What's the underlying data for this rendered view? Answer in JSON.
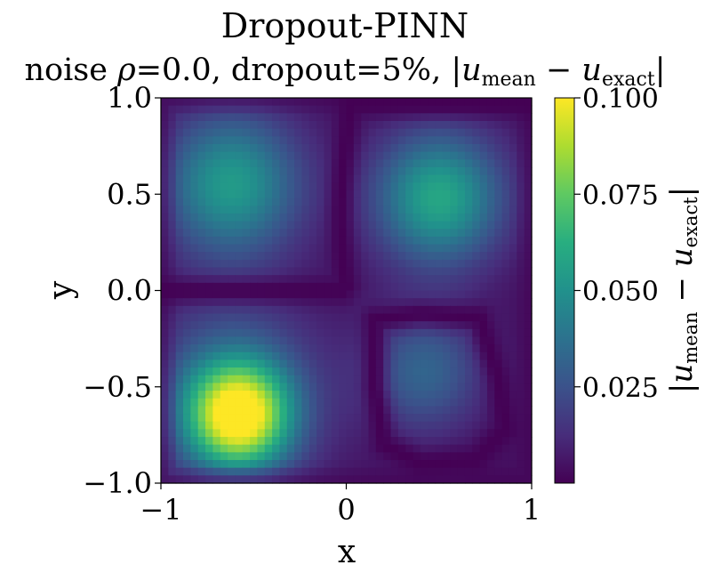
{
  "chart_data": {
    "type": "heatmap",
    "title": "Dropout-PINN",
    "subtitle": {
      "prefix": "noise ",
      "rho_symbol": "ρ",
      "rho_value": "=0.0, dropout=5%, ",
      "expr": {
        "bar_open": "|",
        "u1": "u",
        "sub1": "mean",
        "minus": " − ",
        "u2": "u",
        "sub2": "exact",
        "bar_close": "|"
      }
    },
    "xlabel": "x",
    "ylabel": "y",
    "xlim": [
      -1,
      1
    ],
    "ylim": [
      -1,
      1
    ],
    "xticks": [
      {
        "value": -1,
        "label": "−1"
      },
      {
        "value": 0,
        "label": "0"
      },
      {
        "value": 1,
        "label": "1"
      }
    ],
    "yticks": [
      {
        "value": 1.0,
        "label": "1.0"
      },
      {
        "value": 0.5,
        "label": "0.5"
      },
      {
        "value": 0.0,
        "label": "0.0"
      },
      {
        "value": -0.5,
        "label": "−0.5"
      },
      {
        "value": -1.0,
        "label": "−1.0"
      }
    ],
    "grid": false,
    "colormap": "viridis",
    "colorbar": {
      "vmin": 0.0,
      "vmax": 0.1,
      "ticks": [
        {
          "value": 0.1,
          "label": "0.100"
        },
        {
          "value": 0.075,
          "label": "0.075"
        },
        {
          "value": 0.05,
          "label": "0.050"
        },
        {
          "value": 0.025,
          "label": "0.025"
        }
      ],
      "label": {
        "bar_open": "|",
        "u1": "u",
        "sub1": "mean",
        "minus": " − ",
        "u2": "u",
        "sub2": "exact",
        "bar_close": "|"
      }
    },
    "grid_resolution": [
      50,
      50
    ],
    "field_peaks": [
      {
        "x": -0.58,
        "y": -0.65,
        "value": 0.1
      },
      {
        "x": -0.62,
        "y": 0.58,
        "value": 0.058
      },
      {
        "x": 0.5,
        "y": 0.48,
        "value": 0.062
      },
      {
        "x": 0.42,
        "y": -0.42,
        "value": 0.032
      }
    ],
    "near_zero_curves": [
      {
        "name": "horizontal",
        "y": 0.0,
        "x_range": [
          -1,
          -0.05
        ]
      },
      {
        "name": "vertical",
        "x": 0.0,
        "y_range": [
          0.05,
          1
        ]
      },
      {
        "name": "lower-right loop",
        "x_range": [
          0.1,
          0.9
        ],
        "y_range": [
          -0.92,
          -0.1
        ]
      }
    ]
  }
}
